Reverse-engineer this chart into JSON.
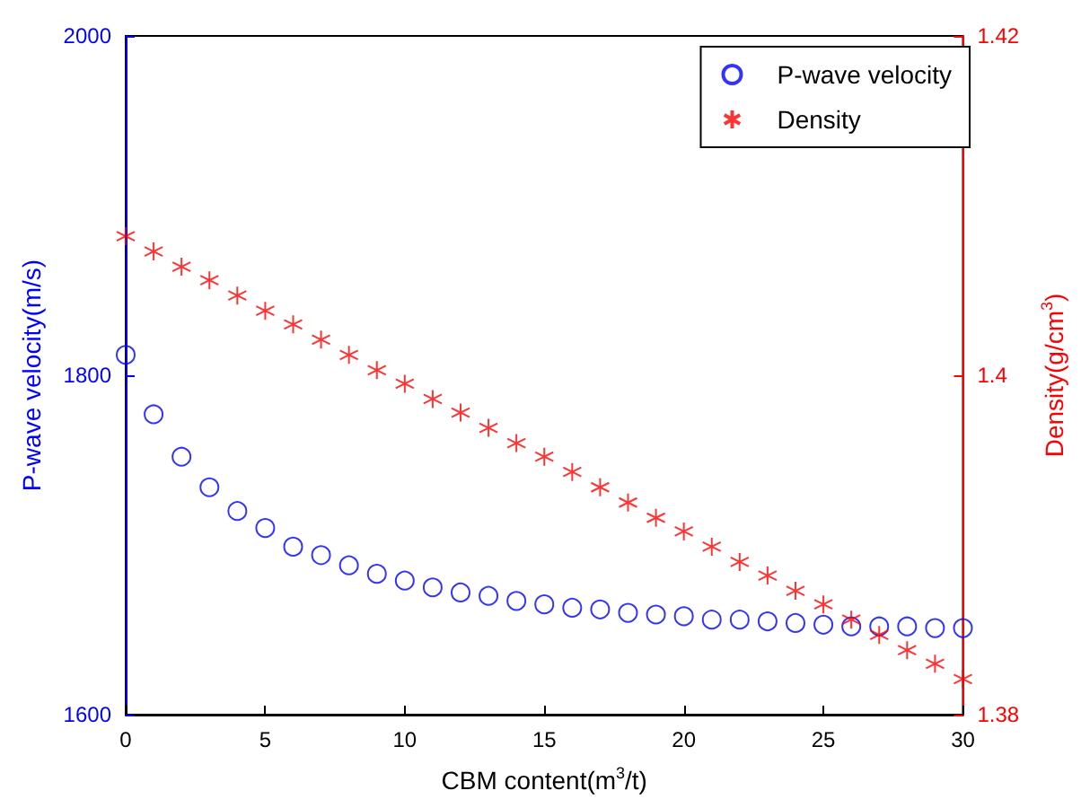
{
  "chart_data": {
    "type": "scatter",
    "xlabel": "CBM content(m$^{3}$/t)",
    "ylabel": "P-wave velocity(m/s)",
    "y2label": "Density(g/cm$^{3}$)",
    "x": [
      0,
      1,
      2,
      3,
      4,
      5,
      6,
      7,
      8,
      9,
      10,
      11,
      12,
      13,
      14,
      15,
      16,
      17,
      18,
      19,
      20,
      21,
      22,
      23,
      24,
      25,
      26,
      27,
      28,
      29,
      30
    ],
    "series": [
      {
        "name": "P-wave velocity",
        "color": "#0000ff",
        "marker": "circle",
        "values": [
          1812,
          1777,
          1752,
          1734,
          1720,
          1710,
          1699,
          1694,
          1688,
          1683,
          1679,
          1675,
          1672,
          1670,
          1667,
          1665,
          1663,
          1662,
          1660,
          1659,
          1658,
          1656,
          1656,
          1655,
          1654,
          1653,
          1652,
          1652,
          1652,
          1651,
          1651
        ]
      },
      {
        "name": "Density",
        "color": "#ff0000",
        "marker": "cross",
        "axis": "y2",
        "values": [
          1.4082,
          1.4073,
          1.4064,
          1.4056,
          1.4047,
          1.4038,
          1.403,
          1.4021,
          1.4012,
          1.4003,
          1.3995,
          1.3986,
          1.3978,
          1.3969,
          1.396,
          1.3952,
          1.3943,
          1.3934,
          1.3925,
          1.3916,
          1.3908,
          1.3899,
          1.389,
          1.3882,
          1.3873,
          1.3865,
          1.3856,
          1.3847,
          1.3838,
          1.383,
          1.3821
        ]
      }
    ],
    "xlim": [
      0,
      30
    ],
    "xticks": [
      0,
      5,
      10,
      15,
      20,
      25,
      30
    ],
    "ylim": [
      1600,
      2000
    ],
    "yticks": [
      1600,
      1800,
      2000
    ],
    "y2lim": [
      1.38,
      1.42
    ],
    "y2ticks": [
      1.38,
      1.4,
      1.42
    ],
    "legend": "top right",
    "grid": false
  }
}
